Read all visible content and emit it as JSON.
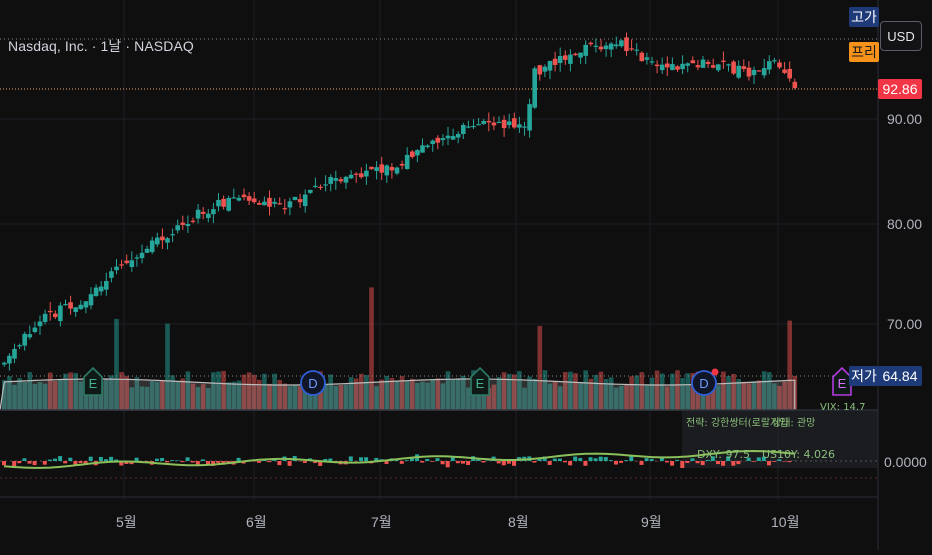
{
  "header": {
    "symbol_title": "Nasdaq, Inc. · 1날 · NASDAQ",
    "currency_button": "USD"
  },
  "tags": {
    "high_label": "고가",
    "pre_label": "프리",
    "low_label": "저가",
    "current_price": "92.86",
    "low_price": "64.84",
    "osc_value": "0.0000"
  },
  "y_axis": [
    "90.00",
    "80.00",
    "70.00"
  ],
  "x_axis": [
    "5월",
    "6월",
    "7월",
    "8월",
    "9월",
    "10월"
  ],
  "indicator": {
    "strategy": "전략: 강한쌍터(로랄지입",
    "state": "상태: 관망",
    "vix": "VIX: 14.7",
    "dxy": "DXY: 97.5",
    "us10y": "US10Y: 4.026"
  },
  "events": [
    {
      "type": "E",
      "kind": "earnings"
    },
    {
      "type": "D",
      "kind": "dividend"
    },
    {
      "type": "E",
      "kind": "earnings"
    },
    {
      "type": "D",
      "kind": "dividend"
    },
    {
      "type": "E",
      "kind": "earnings"
    }
  ],
  "colors": {
    "up": "#26a69a",
    "down": "#ef5350",
    "price_line": "#f7a35c",
    "osc_line": "#8bbf5a",
    "bg": "#0f0f10",
    "high_tag_bg": "#1e3a78",
    "pre_tag_bg": "#f7931a",
    "price_tag_bg": "#f23645",
    "low_tag_bg": "#1e3a78"
  },
  "chart_data": {
    "type": "candlestick",
    "y_range": [
      60.7,
      98.4
    ],
    "x_range": [
      "2025-04-01",
      "2025-10-20"
    ],
    "closes_start": 66.0,
    "close_path": [
      [
        "2025-04-01",
        66.0
      ],
      [
        "2025-04-10",
        70.5
      ],
      [
        "2025-04-20",
        72.5
      ],
      [
        "2025-05-01",
        76.5
      ],
      [
        "2025-05-15",
        80.5
      ],
      [
        "2025-05-25",
        82.5
      ],
      [
        "2025-06-05",
        81.5
      ],
      [
        "2025-06-15",
        84.0
      ],
      [
        "2025-07-01",
        85.5
      ],
      [
        "2025-07-10",
        88.0
      ],
      [
        "2025-07-20",
        90.0
      ],
      [
        "2025-07-30",
        89.0
      ],
      [
        "2025-08-01",
        94.5
      ],
      [
        "2025-08-10",
        96.5
      ],
      [
        "2025-08-20",
        97.5
      ],
      [
        "2025-08-30",
        95.0
      ],
      [
        "2025-09-10",
        95.5
      ],
      [
        "2025-09-20",
        94.5
      ],
      [
        "2025-09-25",
        96.0
      ],
      [
        "2025-09-30",
        92.86
      ]
    ],
    "last_price": 92.86,
    "osc_y_value": 0.0
  }
}
